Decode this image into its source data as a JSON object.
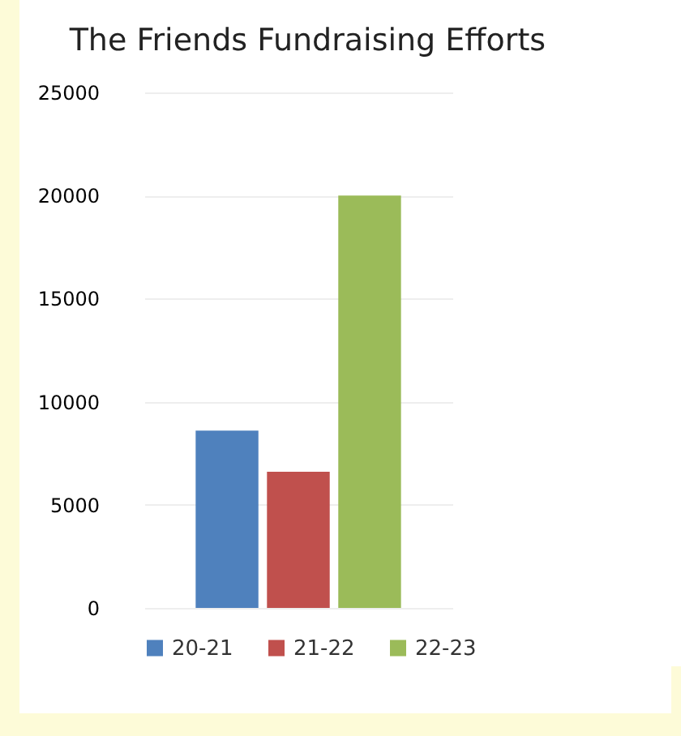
{
  "chart_data": {
    "type": "bar",
    "title": "The Friends Fundraising Efforts",
    "categories": [
      null
    ],
    "series": [
      {
        "name": "20-21",
        "color": "#4f81bd",
        "values": [
          8600
        ]
      },
      {
        "name": "21-22",
        "color": "#c0504d",
        "values": [
          6600
        ]
      },
      {
        "name": "22-23",
        "color": "#9bbb59",
        "values": [
          20000
        ]
      }
    ],
    "ylim": [
      0,
      25000
    ],
    "yticks": [
      0,
      5000,
      10000,
      15000,
      20000,
      25000
    ],
    "grid": "y",
    "legend": "bottom",
    "tick_labels": "y"
  }
}
